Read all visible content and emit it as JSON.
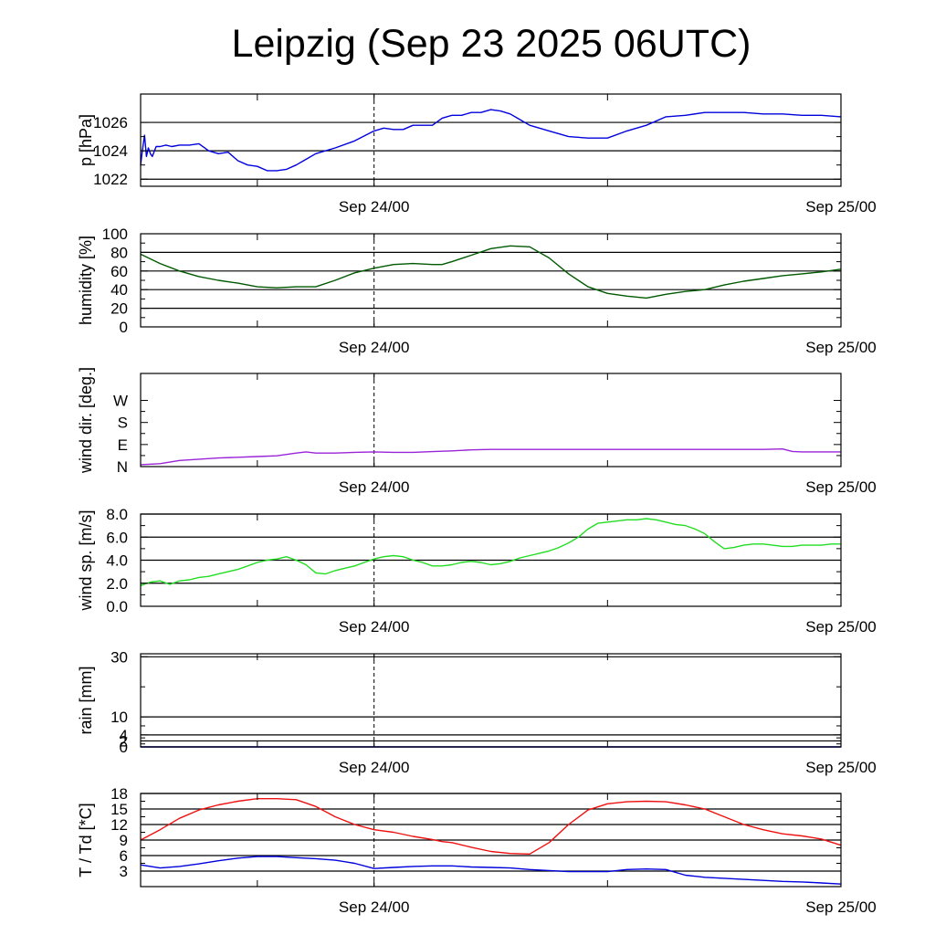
{
  "title": "Leipzig (Sep 23 2025 06UTC)",
  "x_ticks": [
    {
      "label": "Sep 24/00",
      "t": 18
    },
    {
      "label": "Sep 25/00",
      "t": 42
    }
  ],
  "chart_data": [
    {
      "type": "line",
      "ylabel": "p [hPa]",
      "ylim": [
        1021.5,
        1028.0
      ],
      "yticks": [
        {
          "v": 1022,
          "label": "1022"
        },
        {
          "v": 1024,
          "label": "1024"
        },
        {
          "v": 1026,
          "label": "1026"
        }
      ],
      "grid": [
        1022,
        1024,
        1026
      ],
      "x_range_hours": [
        6,
        42
      ],
      "series": [
        {
          "color": "#0000dd",
          "x": [
            6.0,
            6.1,
            6.2,
            6.3,
            6.4,
            6.5,
            6.6,
            6.8,
            7.0,
            7.3,
            7.6,
            8.0,
            8.5,
            9.0,
            9.5,
            10.0,
            10.5,
            11.0,
            11.5,
            12.0,
            12.5,
            13.0,
            13.5,
            14.0,
            14.5,
            15.0,
            16.0,
            17.0,
            18.0,
            18.5,
            19.0,
            19.5,
            20.0,
            20.5,
            21.0,
            21.5,
            22.0,
            22.5,
            23.0,
            23.5,
            24.0,
            24.5,
            25.0,
            25.5,
            26.0,
            27.0,
            28.0,
            29.0,
            30.0,
            31.0,
            32.0,
            33.0,
            34.0,
            35.0,
            36.0,
            37.0,
            38.0,
            39.0,
            40.0,
            41.0,
            42.0
          ],
          "y": [
            1023.0,
            1024.1,
            1025.1,
            1023.6,
            1024.2,
            1023.8,
            1023.6,
            1024.3,
            1024.3,
            1024.4,
            1024.3,
            1024.4,
            1024.4,
            1024.5,
            1024.0,
            1023.8,
            1023.9,
            1023.3,
            1023.0,
            1022.9,
            1022.6,
            1022.6,
            1022.7,
            1023.0,
            1023.4,
            1023.8,
            1024.2,
            1024.7,
            1025.4,
            1025.6,
            1025.5,
            1025.5,
            1025.8,
            1025.8,
            1025.8,
            1026.3,
            1026.5,
            1026.5,
            1026.7,
            1026.7,
            1026.9,
            1026.8,
            1026.6,
            1026.2,
            1025.8,
            1025.4,
            1025.0,
            1024.9,
            1024.9,
            1025.4,
            1025.8,
            1026.4,
            1026.5,
            1026.7,
            1026.7,
            1026.7,
            1026.6,
            1026.6,
            1026.5,
            1026.5,
            1026.4
          ]
        }
      ]
    },
    {
      "type": "line",
      "ylabel": "humidity [%]",
      "ylim": [
        0,
        100
      ],
      "yticks": [
        {
          "v": 0,
          "label": "0"
        },
        {
          "v": 20,
          "label": "20"
        },
        {
          "v": 40,
          "label": "40"
        },
        {
          "v": 60,
          "label": "60"
        },
        {
          "v": 80,
          "label": "80"
        },
        {
          "v": 100,
          "label": "100"
        }
      ],
      "grid": [
        20,
        40,
        60,
        80
      ],
      "x_range_hours": [
        6,
        42
      ],
      "series": [
        {
          "color": "#005a00",
          "x": [
            6,
            7,
            8,
            9,
            10,
            11,
            12,
            13,
            14,
            15,
            16,
            17,
            18,
            19,
            20,
            21,
            21.5,
            22,
            23,
            24,
            25,
            26,
            27,
            28,
            29,
            30,
            31,
            32,
            33,
            34,
            35,
            36,
            37,
            38,
            39,
            40,
            41,
            42
          ],
          "y": [
            78,
            68,
            60,
            54,
            50,
            47,
            43,
            42,
            43,
            43,
            50,
            58,
            63,
            67,
            68,
            67,
            67,
            70,
            77,
            84,
            87,
            86,
            74,
            57,
            43,
            36,
            33,
            31,
            35,
            38,
            40,
            45,
            49,
            52,
            55,
            57,
            59,
            62
          ]
        }
      ]
    },
    {
      "type": "line",
      "ylabel": "wind dir. [deg.]",
      "ylim": [
        0,
        380
      ],
      "yticks": [
        {
          "v": 0,
          "label": "N"
        },
        {
          "v": 90,
          "label": "E"
        },
        {
          "v": 180,
          "label": "S"
        },
        {
          "v": 270,
          "label": "W"
        }
      ],
      "grid": [],
      "x_range_hours": [
        6,
        42
      ],
      "series": [
        {
          "color": "#9a24d8",
          "x": [
            6,
            7,
            8,
            9,
            10,
            11,
            12,
            13,
            14,
            14.5,
            15,
            16,
            17,
            18,
            19,
            20,
            21,
            22,
            23,
            24,
            25,
            26,
            27,
            28,
            29,
            30,
            31,
            32,
            33,
            34,
            35,
            36,
            37,
            38,
            39,
            39.5,
            40,
            41,
            42
          ],
          "y": [
            8,
            12,
            25,
            30,
            35,
            38,
            41,
            44,
            55,
            60,
            55,
            55,
            58,
            60,
            58,
            58,
            61,
            64,
            68,
            70,
            70,
            70,
            70,
            70,
            70,
            70,
            70,
            70,
            70,
            70,
            70,
            70,
            70,
            70,
            72,
            62,
            60,
            60,
            60
          ]
        }
      ]
    },
    {
      "type": "line",
      "ylabel": "wind sp. [m/s]",
      "ylim": [
        0,
        8.0
      ],
      "yticks": [
        {
          "v": 0,
          "label": "0.0"
        },
        {
          "v": 2,
          "label": "2.0"
        },
        {
          "v": 4,
          "label": "4.0"
        },
        {
          "v": 6,
          "label": "6.0"
        },
        {
          "v": 8,
          "label": "8.0"
        }
      ],
      "grid": [
        2,
        4,
        6,
        8
      ],
      "x_range_hours": [
        6,
        42
      ],
      "series": [
        {
          "color": "#22dd22",
          "x": [
            6,
            6.5,
            7,
            7.5,
            8,
            8.5,
            9,
            9.5,
            10,
            10.5,
            11,
            11.5,
            12,
            12.5,
            13,
            13.5,
            14,
            14.5,
            15,
            15.5,
            16,
            16.5,
            17,
            17.5,
            18,
            18.5,
            19,
            19.5,
            20,
            20.5,
            21,
            21.5,
            22,
            22.5,
            23,
            23.5,
            24,
            24.5,
            25,
            25.5,
            26,
            26.5,
            27,
            27.5,
            28,
            28.5,
            29,
            29.5,
            30,
            30.5,
            31,
            31.5,
            32,
            32.5,
            33,
            33.5,
            34,
            34.5,
            35,
            35.5,
            36,
            36.5,
            37,
            37.5,
            38,
            38.5,
            39,
            39.5,
            40,
            40.5,
            41,
            41.5,
            42
          ],
          "y": [
            1.8,
            2.1,
            2.2,
            1.9,
            2.2,
            2.3,
            2.5,
            2.6,
            2.8,
            3.0,
            3.2,
            3.5,
            3.8,
            4.0,
            4.1,
            4.3,
            4.0,
            3.6,
            2.9,
            2.8,
            3.1,
            3.3,
            3.5,
            3.8,
            4.1,
            4.3,
            4.4,
            4.3,
            4.0,
            3.8,
            3.5,
            3.5,
            3.6,
            3.8,
            3.9,
            3.8,
            3.6,
            3.7,
            3.9,
            4.2,
            4.4,
            4.6,
            4.8,
            5.1,
            5.5,
            6.0,
            6.7,
            7.2,
            7.3,
            7.4,
            7.5,
            7.5,
            7.6,
            7.5,
            7.3,
            7.1,
            7.0,
            6.7,
            6.3,
            5.6,
            5.0,
            5.1,
            5.3,
            5.4,
            5.4,
            5.3,
            5.2,
            5.2,
            5.3,
            5.3,
            5.3,
            5.4,
            5.4
          ]
        }
      ]
    },
    {
      "type": "line",
      "ylabel": "rain [mm]",
      "ylim": [
        0,
        31
      ],
      "yticks": [
        {
          "v": 0,
          "label": "0"
        },
        {
          "v": 2,
          "label": "2"
        },
        {
          "v": 4,
          "label": "4"
        },
        {
          "v": 10,
          "label": "10"
        },
        {
          "v": 30,
          "label": "30"
        }
      ],
      "grid": [
        0,
        2,
        4,
        10,
        30
      ],
      "x_range_hours": [
        6,
        42
      ],
      "series": [
        {
          "color": "#0000dd",
          "x": [
            6,
            42
          ],
          "y": [
            0,
            0
          ]
        }
      ]
    },
    {
      "type": "line",
      "ylabel": "T / Td [*C]",
      "ylim": [
        0,
        18
      ],
      "yticks": [
        {
          "v": 3,
          "label": "3"
        },
        {
          "v": 6,
          "label": "6"
        },
        {
          "v": 9,
          "label": "9"
        },
        {
          "v": 12,
          "label": "12"
        },
        {
          "v": 15,
          "label": "15"
        },
        {
          "v": 18,
          "label": "18"
        }
      ],
      "grid": [
        3,
        6,
        9,
        12,
        15,
        18
      ],
      "x_range_hours": [
        6,
        42
      ],
      "series": [
        {
          "color": "#ee1111",
          "x": [
            6,
            7,
            8,
            9,
            10,
            11,
            12,
            13,
            14,
            15,
            16,
            17,
            18,
            19,
            20,
            21,
            21.5,
            22,
            23,
            24,
            25,
            26,
            27,
            28,
            29,
            30,
            31,
            32,
            33,
            34,
            35,
            36,
            37,
            38,
            39,
            40,
            41,
            42
          ],
          "y": [
            9.0,
            11.0,
            13.2,
            14.8,
            15.8,
            16.5,
            17.0,
            17.0,
            16.8,
            15.5,
            13.5,
            12.0,
            11.0,
            10.5,
            9.7,
            9.1,
            8.7,
            8.5,
            7.6,
            6.8,
            6.4,
            6.3,
            8.5,
            12.0,
            14.8,
            16.0,
            16.4,
            16.5,
            16.4,
            15.8,
            15.0,
            13.5,
            12.0,
            11.0,
            10.2,
            9.8,
            9.2,
            8.0
          ]
        },
        {
          "color": "#0000dd",
          "x": [
            6,
            7,
            8,
            9,
            10,
            11,
            12,
            13,
            14,
            15,
            16,
            17,
            18,
            19,
            20,
            21,
            22,
            23,
            24,
            25,
            26,
            27,
            28,
            29,
            30,
            31,
            32,
            33,
            34,
            35,
            36,
            37,
            38,
            39,
            40,
            41,
            42
          ],
          "y": [
            4.2,
            3.6,
            3.9,
            4.4,
            5.0,
            5.5,
            5.8,
            5.8,
            5.6,
            5.4,
            5.1,
            4.5,
            3.5,
            3.7,
            3.9,
            4.0,
            4.0,
            3.8,
            3.7,
            3.6,
            3.3,
            3.1,
            2.9,
            2.9,
            2.9,
            3.3,
            3.4,
            3.3,
            2.2,
            1.8,
            1.6,
            1.4,
            1.2,
            1.0,
            0.9,
            0.7,
            0.5
          ]
        }
      ]
    }
  ]
}
